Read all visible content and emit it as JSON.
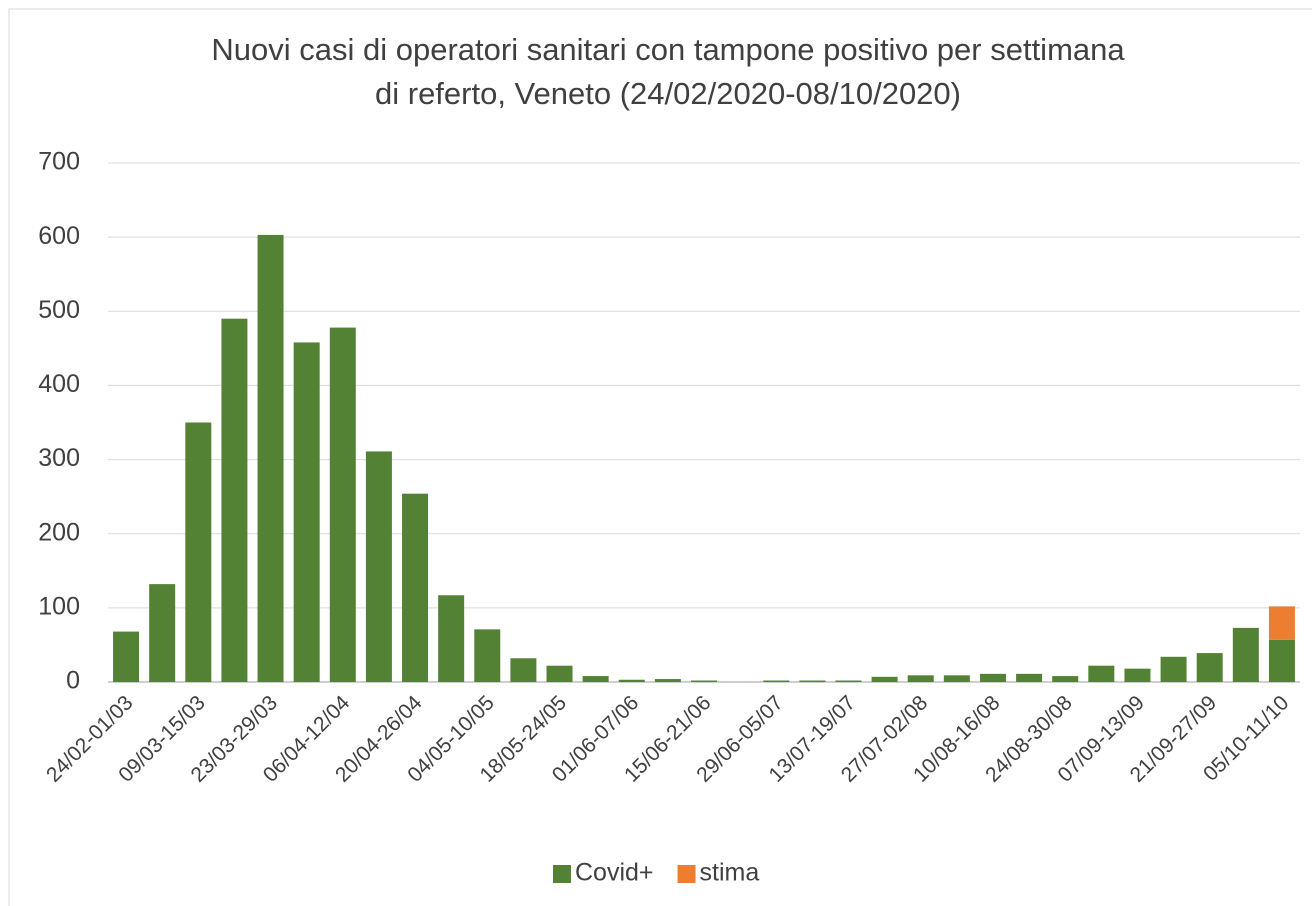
{
  "chart_data": {
    "type": "stacked_bar",
    "title": [
      "Nuovi casi di operatori sanitari con tampone positivo per settimana",
      "di referto, Veneto (24/02/2020-08/10/2020)"
    ],
    "categories": [
      "24/02-01/03",
      null,
      "09/03-15/03",
      null,
      "23/03-29/03",
      null,
      "06/04-12/04",
      null,
      "20/04-26/04",
      null,
      "04/05-10/05",
      null,
      "18/05-24/05",
      null,
      "01/06-07/06",
      null,
      "15/06-21/06",
      null,
      "29/06-05/07",
      null,
      "13/07-19/07",
      null,
      "27/07-02/08",
      null,
      "10/08-16/08",
      null,
      "24/08-30/08",
      null,
      "07/09-13/09",
      null,
      "21/09-27/09",
      null,
      "05/10-11/10"
    ],
    "series": [
      {
        "name": "Covid+",
        "color": "#548235",
        "values": [
          68,
          132,
          350,
          490,
          603,
          458,
          478,
          311,
          254,
          117,
          71,
          32,
          22,
          8,
          3,
          4,
          2,
          0,
          2,
          2,
          2,
          7,
          9,
          9,
          11,
          11,
          8,
          22,
          18,
          34,
          39,
          73,
          57
        ]
      },
      {
        "name": "stima",
        "color": "#ed7d31",
        "values": [
          null,
          null,
          null,
          null,
          null,
          null,
          null,
          null,
          null,
          null,
          null,
          null,
          null,
          null,
          null,
          null,
          null,
          null,
          null,
          null,
          null,
          null,
          null,
          null,
          null,
          null,
          null,
          null,
          null,
          null,
          null,
          null,
          45
        ]
      }
    ],
    "ylim": [
      0,
      700
    ],
    "yticks": [
      0,
      100,
      200,
      300,
      400,
      500,
      600,
      700
    ],
    "grid": true,
    "legend": "bottom"
  }
}
